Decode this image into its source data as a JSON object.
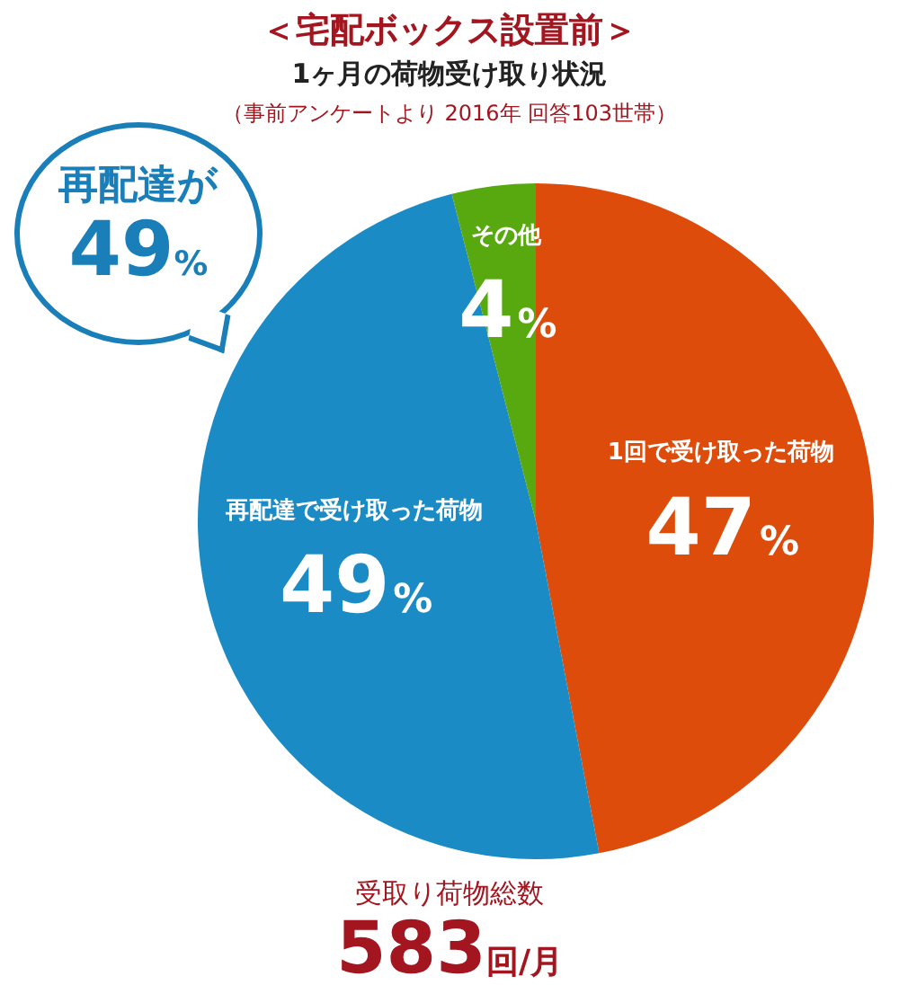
{
  "chart_data": {
    "type": "pie",
    "title": "＜宅配ボックス設置前＞",
    "subtitle": "1ヶ月の荷物受け取り状況",
    "categories": [
      "1回で受け取った荷物",
      "再配達で受け取った荷物",
      "その他"
    ],
    "values": [
      47,
      49,
      4
    ],
    "colors": [
      "#dd4c0a",
      "#1a8bc4",
      "#58a810"
    ],
    "value_labels": [
      "47%",
      "49%",
      "4%"
    ],
    "legend": false,
    "annotations": [
      "（事前アンケートより 2016年 回答103世帯）",
      "再配達が",
      "49%",
      "受取り荷物総数",
      "583回/月"
    ]
  }
}
